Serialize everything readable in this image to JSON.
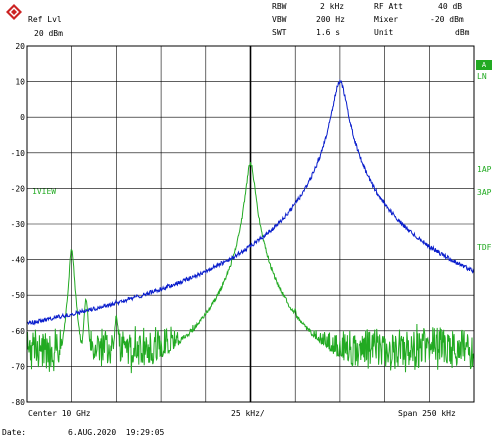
{
  "header": {
    "ref_lvl_label": "Ref Lvl",
    "ref_lvl_value": "20 dBm",
    "rbw_label": "RBW",
    "rbw_value": "2 kHz",
    "vbw_label": "VBW",
    "vbw_value": "200 Hz",
    "swt_label": "SWT",
    "swt_value": "1.6 s",
    "rf_att_label": "RF Att",
    "rf_att_value": "40 dB",
    "mixer_label": "Mixer",
    "mixer_value": "-20 dBm",
    "unit_label": "Unit",
    "unit_value": "dBm"
  },
  "side_labels": {
    "marker_a": "A",
    "ln": "LN",
    "iap": "1AP",
    "sap": "3AP",
    "tdf": "TDF",
    "ref_marker": "1VIEW"
  },
  "footer": {
    "center": "Center 10 GHz",
    "div": "25 kHz/",
    "span": "Span 250 kHz",
    "date_label": "Date:",
    "date_value": "6.AUG.2020  19:29:05"
  },
  "colors": {
    "trace_green": "#22aa22",
    "trace_blue": "#0a1ecc",
    "grid": "#000000"
  },
  "chart_data": {
    "type": "line",
    "xlabel": "",
    "ylabel": "",
    "y_ticks": [
      20,
      10,
      0,
      -10,
      -20,
      -30,
      -40,
      -50,
      -60,
      -70,
      -80
    ],
    "ylim": [
      -80,
      20
    ],
    "x_range_khz": [
      -125,
      125
    ],
    "grid": true,
    "center_line_khz": 0,
    "noise_floor_db": -65,
    "series": [
      {
        "color": "green",
        "x_range_khz": [
          -125,
          125
        ],
        "peaks": [
          {
            "x_khz": -100,
            "y_db": -37
          },
          {
            "x_khz": -92,
            "y_db": -51
          },
          {
            "x_khz": -75,
            "y_db": -56
          },
          {
            "x_khz": 0,
            "y_db": -13
          },
          {
            "x_khz": 25,
            "y_db": -54
          }
        ]
      },
      {
        "color": "blue",
        "x_range_khz": [
          -125,
          125
        ],
        "peaks": [
          {
            "x_khz": 50,
            "y_db": 10
          }
        ]
      }
    ]
  }
}
